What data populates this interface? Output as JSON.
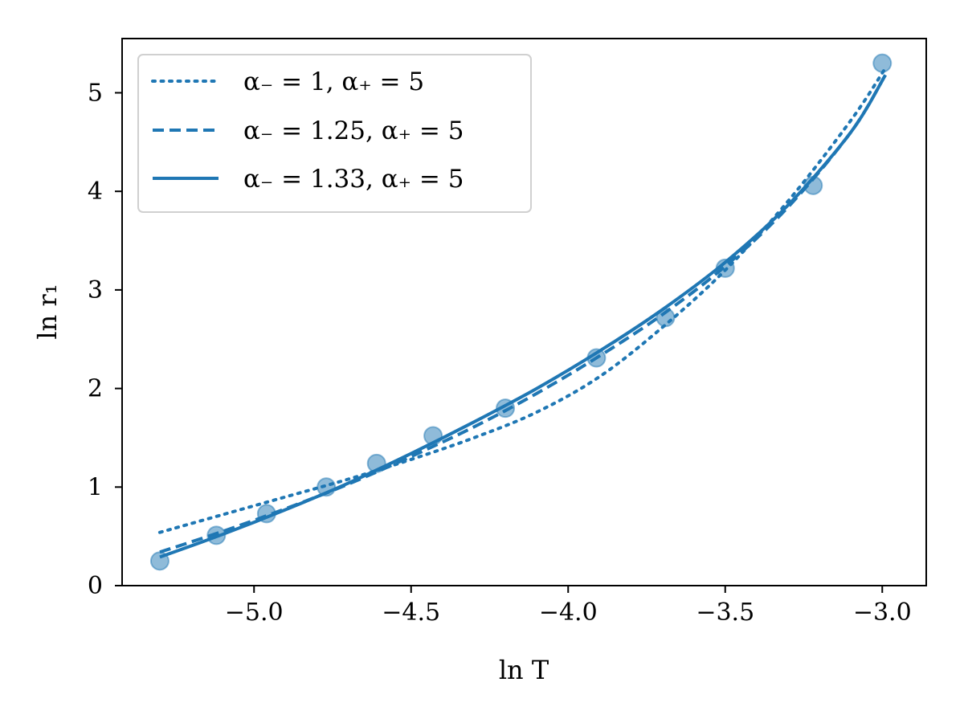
{
  "chart_data": {
    "type": "line",
    "xlabel": "ln T",
    "ylabel": "ln r₁",
    "xlim": [
      -5.42,
      -2.86
    ],
    "ylim": [
      0,
      5.55
    ],
    "x_ticks": [
      -5.0,
      -4.5,
      -4.0,
      -3.5,
      -3.0
    ],
    "x_tick_labels": [
      "−5.0",
      "−4.5",
      "−4.0",
      "−3.5",
      "−3.0"
    ],
    "y_ticks": [
      0,
      1,
      2,
      3,
      4,
      5
    ],
    "y_tick_labels": [
      "0",
      "1",
      "2",
      "3",
      "4",
      "5"
    ],
    "grid": false,
    "legend_position": "top-left",
    "colors": {
      "line": "#1f77b4",
      "marker_fill": "#1f77b4",
      "marker_edge": "#1f77b4",
      "axes": "#000000",
      "legend_border": "#d0d0d0"
    },
    "scatter": {
      "x": [
        -5.3,
        -5.12,
        -4.96,
        -4.77,
        -4.61,
        -4.43,
        -4.2,
        -3.91,
        -3.69,
        -3.5,
        -3.22,
        -3.0
      ],
      "y": [
        0.25,
        0.51,
        0.73,
        1.0,
        1.24,
        1.52,
        1.8,
        2.31,
        2.72,
        3.22,
        4.06,
        5.3
      ]
    },
    "series": [
      {
        "name": "α₋ = 1, α₊ = 5",
        "style": "dotted",
        "x": [
          -5.3,
          -5.1,
          -4.9,
          -4.7,
          -4.5,
          -4.3,
          -4.1,
          -3.9,
          -3.7,
          -3.5,
          -3.3,
          -3.1,
          -2.99
        ],
        "y": [
          0.54,
          0.72,
          0.9,
          1.08,
          1.28,
          1.5,
          1.76,
          2.12,
          2.62,
          3.2,
          3.9,
          4.72,
          5.25
        ]
      },
      {
        "name": "α₋ = 1.25, α₊ = 5",
        "style": "dashed",
        "x": [
          -5.3,
          -5.1,
          -4.9,
          -4.7,
          -4.5,
          -4.3,
          -4.1,
          -3.9,
          -3.7,
          -3.5,
          -3.3,
          -3.1,
          -2.99
        ],
        "y": [
          0.34,
          0.55,
          0.78,
          1.03,
          1.31,
          1.61,
          1.95,
          2.33,
          2.75,
          3.24,
          3.84,
          4.6,
          5.18
        ]
      },
      {
        "name": "α₋ = 1.33, α₊ = 5",
        "style": "solid",
        "x": [
          -5.3,
          -5.1,
          -4.9,
          -4.7,
          -4.5,
          -4.3,
          -4.1,
          -3.9,
          -3.7,
          -3.5,
          -3.3,
          -3.1,
          -2.99
        ],
        "y": [
          0.29,
          0.52,
          0.77,
          1.04,
          1.34,
          1.66,
          2.0,
          2.38,
          2.8,
          3.28,
          3.86,
          4.6,
          5.18
        ]
      }
    ]
  }
}
